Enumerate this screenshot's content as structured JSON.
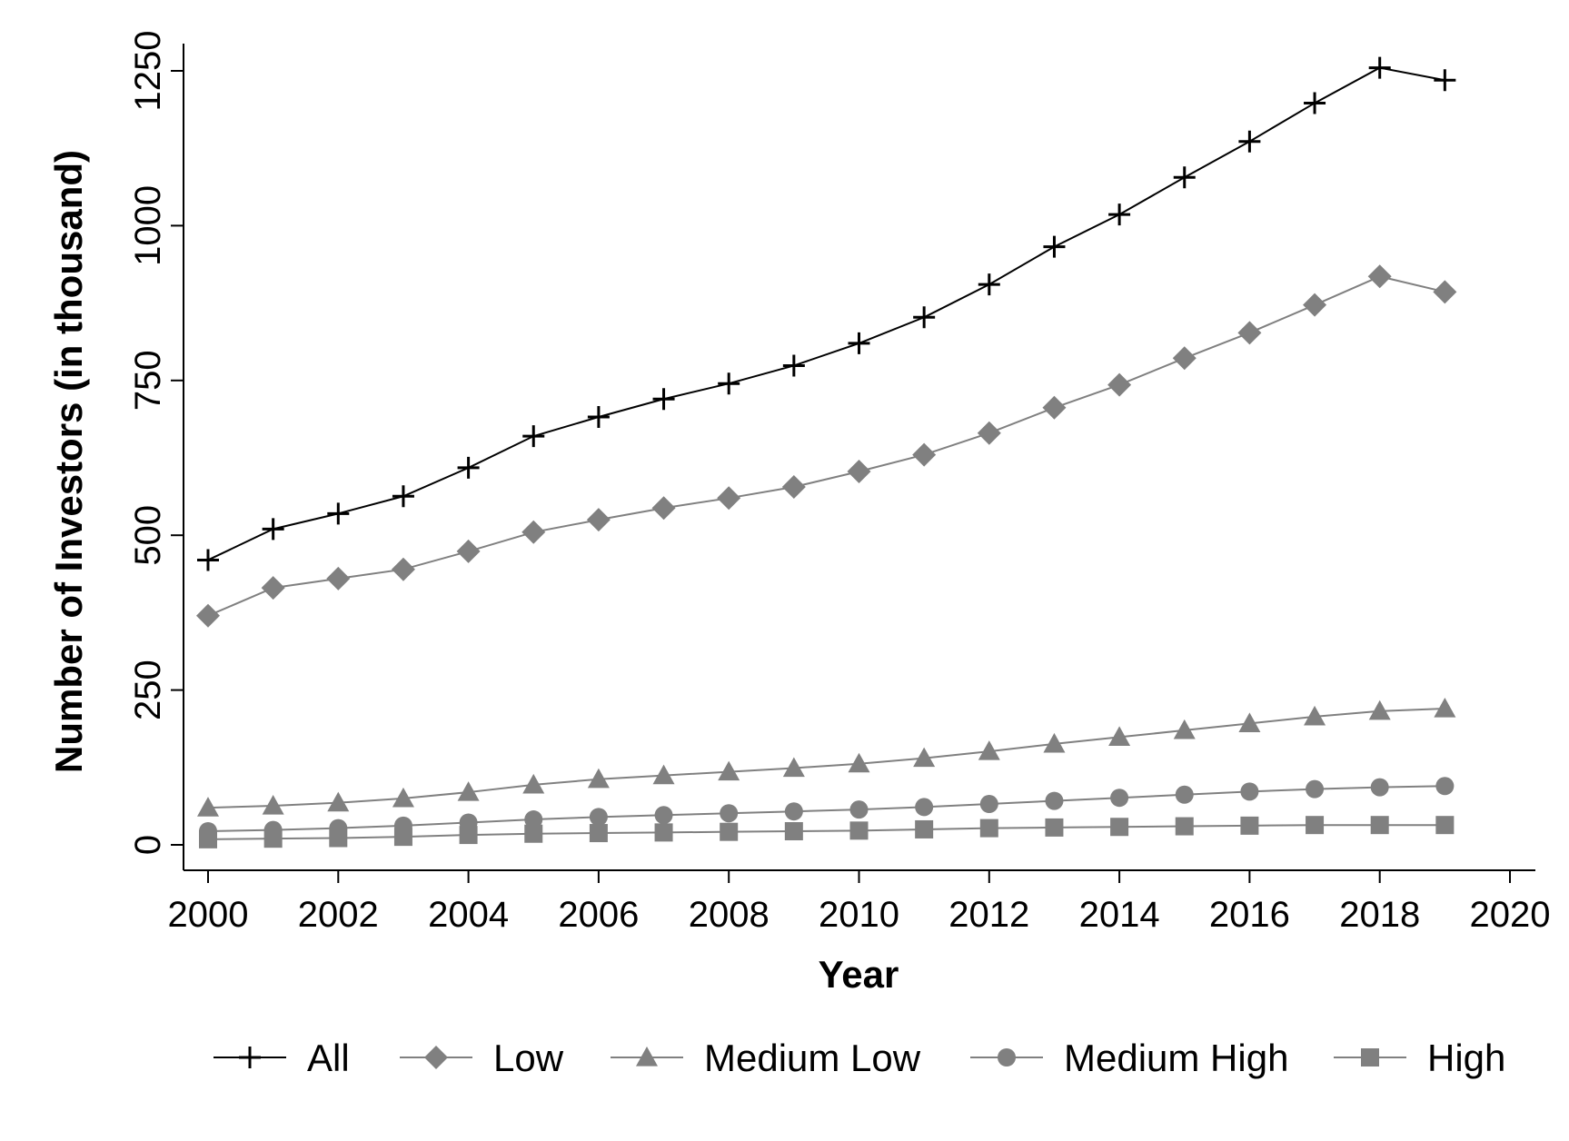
{
  "chart_data": {
    "type": "line",
    "title": "",
    "xlabel": "Year",
    "ylabel": "Number of Investors (in thousand)",
    "xlim": [
      2000,
      2020
    ],
    "ylim": [
      0,
      1250
    ],
    "x_ticks": [
      2000,
      2002,
      2004,
      2006,
      2008,
      2010,
      2012,
      2014,
      2016,
      2018,
      2020
    ],
    "y_ticks": [
      0,
      250,
      500,
      750,
      1000,
      1250
    ],
    "grid": false,
    "legend_position": "bottom",
    "x": [
      2000,
      2001,
      2002,
      2003,
      2004,
      2005,
      2006,
      2007,
      2008,
      2009,
      2010,
      2011,
      2012,
      2013,
      2014,
      2015,
      2016,
      2017,
      2018,
      2019
    ],
    "series": [
      {
        "name": "All",
        "marker": "plus",
        "color": "#000000",
        "values": [
          460,
          510,
          535,
          563,
          609,
          660,
          691,
          720,
          745,
          774,
          810,
          852,
          905,
          966,
          1018,
          1078,
          1136,
          1198,
          1255,
          1235
        ]
      },
      {
        "name": "Low",
        "marker": "diamond",
        "color": "#808080",
        "values": [
          370,
          415,
          430,
          445,
          474,
          505,
          525,
          544,
          560,
          578,
          603,
          630,
          665,
          706,
          743,
          786,
          827,
          872,
          918,
          893
        ]
      },
      {
        "name": "Medium Low",
        "marker": "triangle",
        "color": "#808080",
        "values": [
          60,
          63,
          68,
          75,
          85,
          97,
          106,
          112,
          118,
          124,
          131,
          140,
          151,
          163,
          174,
          185,
          196,
          207,
          216,
          220
        ]
      },
      {
        "name": "Medium High",
        "marker": "circle",
        "color": "#808080",
        "values": [
          22,
          24,
          27,
          31,
          36,
          41,
          45,
          48,
          51,
          54,
          57,
          61,
          66,
          71,
          76,
          81,
          86,
          90,
          93,
          95
        ]
      },
      {
        "name": "High",
        "marker": "square",
        "color": "#808080",
        "values": [
          9,
          10,
          11,
          13,
          16,
          18,
          19,
          20,
          21,
          22,
          23,
          25,
          27,
          28,
          29,
          30,
          31,
          32,
          32,
          32
        ]
      }
    ]
  }
}
